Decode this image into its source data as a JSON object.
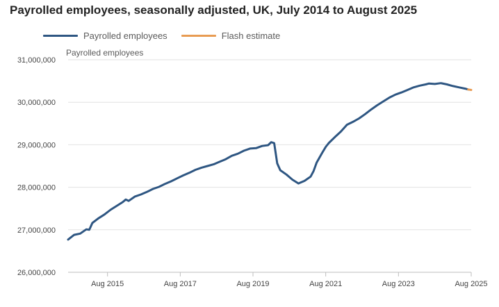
{
  "title": "Payrolled employees, seasonally adjusted, UK, July 2014 to August 2025",
  "legend": [
    {
      "label": "Payrolled employees",
      "color": "#2e5682"
    },
    {
      "label": "Flash estimate",
      "color": "#e89b52"
    }
  ],
  "chart_data": {
    "type": "line",
    "title": "Payrolled employees, seasonally adjusted, UK, July 2014 to August 2025",
    "ylabel": "Payrolled employees",
    "xlabel": "",
    "ylim": [
      26000000,
      31000000
    ],
    "yticks": [
      26000000,
      27000000,
      28000000,
      29000000,
      30000000,
      31000000
    ],
    "ytick_labels": [
      "26,000,000",
      "27,000,000",
      "28,000,000",
      "29,000,000",
      "30,000,000",
      "31,000,000"
    ],
    "xlim": [
      "2014-07",
      "2025-08"
    ],
    "xticks": [
      "2015-08",
      "2017-08",
      "2019-08",
      "2021-08",
      "2023-08",
      "2025-08"
    ],
    "xtick_labels": [
      "Aug 2015",
      "Aug 2017",
      "Aug 2019",
      "Aug 2021",
      "Aug 2023",
      "Aug 2025"
    ],
    "grid": "horizontal",
    "legend_position": "top-left",
    "series": [
      {
        "name": "Payrolled employees",
        "color": "#2e5682",
        "points": [
          [
            "2014-07",
            26770000
          ],
          [
            "2014-09",
            26880000
          ],
          [
            "2014-11",
            26910000
          ],
          [
            "2015-01",
            27010000
          ],
          [
            "2015-02",
            27000000
          ],
          [
            "2015-03",
            27160000
          ],
          [
            "2015-05",
            27270000
          ],
          [
            "2015-07",
            27360000
          ],
          [
            "2015-09",
            27470000
          ],
          [
            "2015-11",
            27560000
          ],
          [
            "2016-01",
            27650000
          ],
          [
            "2016-02",
            27710000
          ],
          [
            "2016-03",
            27680000
          ],
          [
            "2016-05",
            27780000
          ],
          [
            "2016-07",
            27830000
          ],
          [
            "2016-09",
            27890000
          ],
          [
            "2016-11",
            27960000
          ],
          [
            "2017-01",
            28010000
          ],
          [
            "2017-03",
            28080000
          ],
          [
            "2017-05",
            28140000
          ],
          [
            "2017-07",
            28210000
          ],
          [
            "2017-09",
            28280000
          ],
          [
            "2017-11",
            28340000
          ],
          [
            "2018-01",
            28410000
          ],
          [
            "2018-03",
            28460000
          ],
          [
            "2018-05",
            28500000
          ],
          [
            "2018-07",
            28540000
          ],
          [
            "2018-09",
            28600000
          ],
          [
            "2018-11",
            28660000
          ],
          [
            "2019-01",
            28740000
          ],
          [
            "2019-03",
            28790000
          ],
          [
            "2019-05",
            28860000
          ],
          [
            "2019-07",
            28910000
          ],
          [
            "2019-09",
            28920000
          ],
          [
            "2019-11",
            28970000
          ],
          [
            "2020-01",
            28990000
          ],
          [
            "2020-02",
            29060000
          ],
          [
            "2020-03",
            29040000
          ],
          [
            "2020-04",
            28560000
          ],
          [
            "2020-05",
            28400000
          ],
          [
            "2020-07",
            28300000
          ],
          [
            "2020-09",
            28180000
          ],
          [
            "2020-11",
            28090000
          ],
          [
            "2021-01",
            28150000
          ],
          [
            "2021-02",
            28200000
          ],
          [
            "2021-03",
            28250000
          ],
          [
            "2021-04",
            28380000
          ],
          [
            "2021-05",
            28580000
          ],
          [
            "2021-07",
            28830000
          ],
          [
            "2021-08",
            28950000
          ],
          [
            "2021-09",
            29040000
          ],
          [
            "2021-11",
            29180000
          ],
          [
            "2022-01",
            29310000
          ],
          [
            "2022-03",
            29470000
          ],
          [
            "2022-05",
            29540000
          ],
          [
            "2022-07",
            29620000
          ],
          [
            "2022-09",
            29720000
          ],
          [
            "2022-11",
            29830000
          ],
          [
            "2023-01",
            29930000
          ],
          [
            "2023-03",
            30020000
          ],
          [
            "2023-05",
            30110000
          ],
          [
            "2023-07",
            30180000
          ],
          [
            "2023-09",
            30230000
          ],
          [
            "2023-11",
            30290000
          ],
          [
            "2024-01",
            30350000
          ],
          [
            "2024-03",
            30390000
          ],
          [
            "2024-05",
            30420000
          ],
          [
            "2024-06",
            30440000
          ],
          [
            "2024-08",
            30430000
          ],
          [
            "2024-10",
            30450000
          ],
          [
            "2024-12",
            30420000
          ],
          [
            "2025-02",
            30380000
          ],
          [
            "2025-04",
            30350000
          ],
          [
            "2025-06",
            30320000
          ],
          [
            "2025-07",
            30300000
          ]
        ]
      },
      {
        "name": "Flash estimate",
        "color": "#e89b52",
        "points": [
          [
            "2025-07",
            30300000
          ],
          [
            "2025-08",
            30290000
          ]
        ]
      }
    ]
  }
}
